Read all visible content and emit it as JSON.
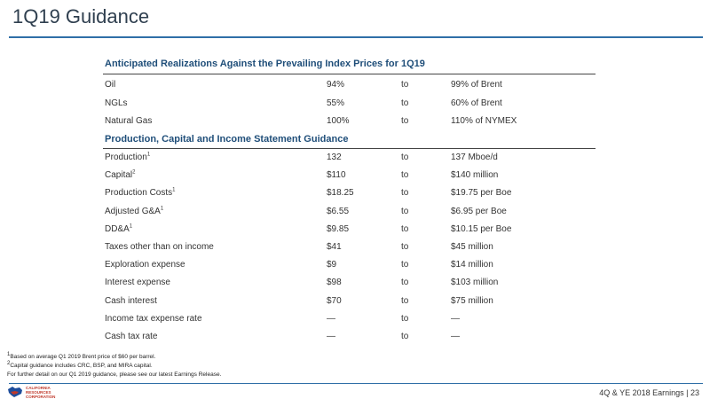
{
  "title": "1Q19 Guidance",
  "section1": {
    "heading": "Anticipated Realizations Against the Prevailing Index Prices for 1Q19",
    "rows": [
      {
        "label": "Oil",
        "sup": "",
        "low": "94%",
        "to": "to",
        "high": "99% of Brent"
      },
      {
        "label": "NGLs",
        "sup": "",
        "low": "55%",
        "to": "to",
        "high": "60% of Brent"
      },
      {
        "label": "Natural Gas",
        "sup": "",
        "low": "100%",
        "to": "to",
        "high": "110% of NYMEX"
      }
    ]
  },
  "section2": {
    "heading": "Production, Capital and Income Statement Guidance",
    "rows": [
      {
        "label": "Production",
        "sup": "1",
        "low": "132",
        "to": "to",
        "high": "137 Mboe/d"
      },
      {
        "label": "Capital",
        "sup": "2",
        "low": "$110",
        "to": "to",
        "high": "$140 million"
      },
      {
        "label": "Production Costs",
        "sup": "1",
        "low": "$18.25",
        "to": "to",
        "high": "$19.75 per Boe"
      },
      {
        "label": "Adjusted G&A",
        "sup": "1",
        "low": "$6.55",
        "to": "to",
        "high": "$6.95 per Boe"
      },
      {
        "label": "DD&A",
        "sup": "1",
        "low": "$9.85",
        "to": "to",
        "high": "$10.15 per Boe"
      },
      {
        "label": "Taxes other than on income",
        "sup": "",
        "low": "$41",
        "to": "to",
        "high": "$45 million"
      },
      {
        "label": "Exploration expense",
        "sup": "",
        "low": "$9",
        "to": "to",
        "high": "$14 million"
      },
      {
        "label": "Interest expense",
        "sup": "",
        "low": "$98",
        "to": "to",
        "high": "$103 million"
      },
      {
        "label": "Cash interest",
        "sup": "",
        "low": "$70",
        "to": "to",
        "high": "$75 million"
      },
      {
        "label": "Income tax expense rate",
        "sup": "",
        "low": "—",
        "to": "to",
        "high": "—"
      },
      {
        "label": "Cash tax rate",
        "sup": "",
        "low": "—",
        "to": "to",
        "high": "—"
      }
    ]
  },
  "footnotes": [
    {
      "sup": "1",
      "text": "Based on average Q1 2019 Brent price of $60 per barrel."
    },
    {
      "sup": "2",
      "text": "Capital guidance includes CRC, BSP, and MIRA capital."
    },
    {
      "sup": "",
      "text": "For further detail on our Q1 2019 guidance, please see our latest Earnings Release."
    }
  ],
  "footer": {
    "text": "4Q & YE 2018 Earnings | 23",
    "logo_lines": [
      "CALIFORNIA",
      "RESOURCES",
      "CORPORATION"
    ],
    "logo_colors": {
      "blue": "#1f4e9c",
      "red": "#c0392b"
    }
  }
}
